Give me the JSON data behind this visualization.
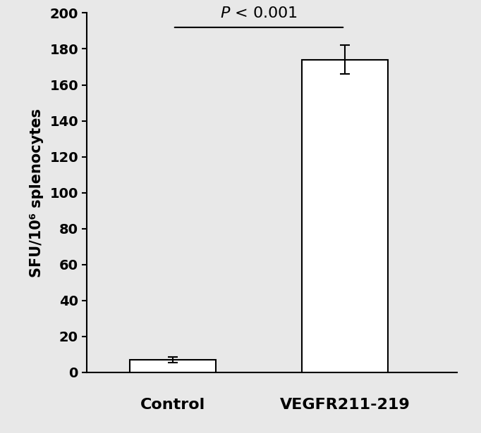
{
  "categories": [
    "Control",
    "VEGFR211-219"
  ],
  "values": [
    7,
    174
  ],
  "errors": [
    1.5,
    8
  ],
  "bar_color": "#ffffff",
  "bar_edgecolor": "#000000",
  "bar_linewidth": 1.5,
  "ylabel": "SFU/10⁶ splenocytes",
  "xlabel_labels": [
    "Control",
    "VEGFR211-219"
  ],
  "ylim": [
    0,
    200
  ],
  "yticks": [
    0,
    20,
    40,
    60,
    80,
    100,
    120,
    140,
    160,
    180,
    200
  ],
  "significance_text": "$\\mathit{P}$ < 0.001",
  "background_color": "#e8e8e8",
  "figsize": [
    6.82,
    6.15
  ],
  "dpi": 100,
  "ylabel_fontsize": 15,
  "tick_fontsize": 14,
  "xlabel_fontsize": 16,
  "sig_fontsize": 16
}
